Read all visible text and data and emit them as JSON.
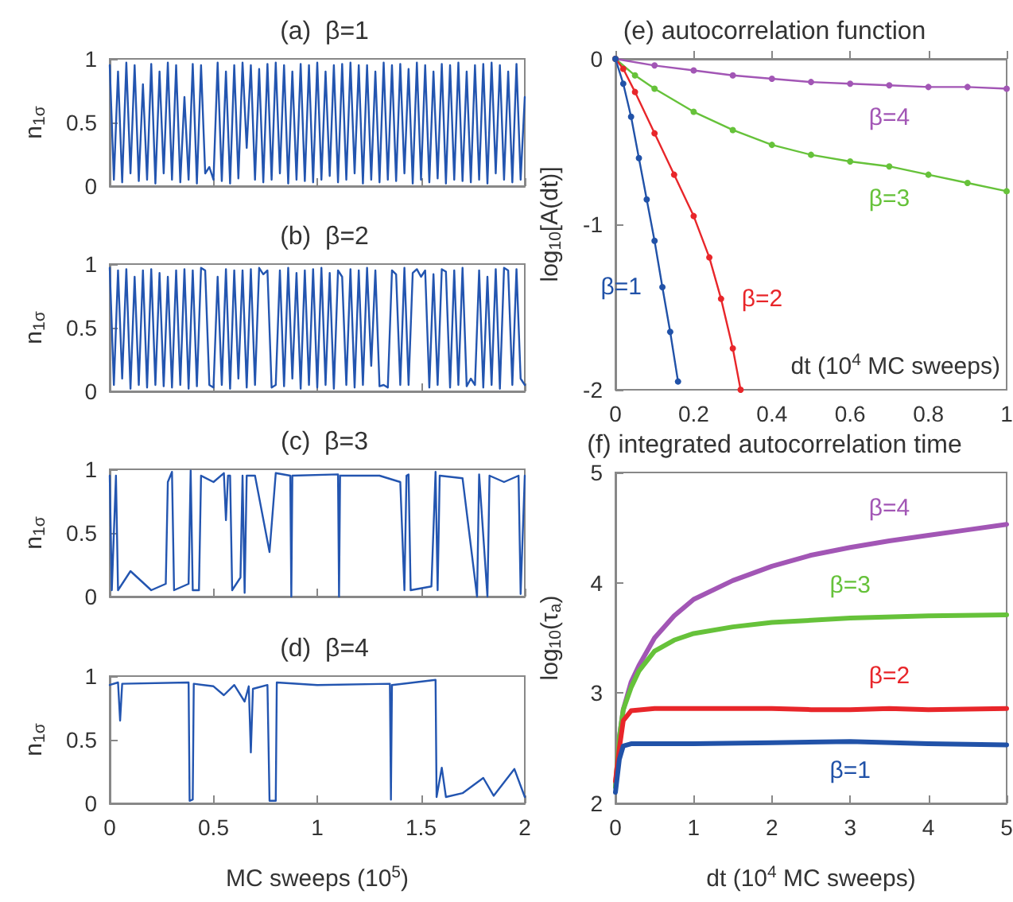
{
  "chart_data": [
    {
      "type": "line",
      "title": "(a)  β=1",
      "ylabel": "n$_{1σ}$",
      "xlim": [
        0,
        2
      ],
      "xticks": [
        0,
        0.5,
        1,
        1.5,
        2
      ],
      "ylim": [
        0,
        1
      ],
      "yticks": [
        0,
        0.5,
        1
      ],
      "tick_labels": "y",
      "marker": "none",
      "series": [
        {
          "color": "#2355b0",
          "x": [
            0,
            0.02,
            0.04,
            0.06,
            0.08,
            0.1,
            0.12,
            0.14,
            0.16,
            0.18,
            0.2,
            0.22,
            0.24,
            0.26,
            0.28,
            0.3,
            0.32,
            0.34,
            0.36,
            0.38,
            0.4,
            0.42,
            0.44,
            0.46,
            0.48,
            0.5,
            0.52,
            0.54,
            0.56,
            0.58,
            0.6,
            0.62,
            0.64,
            0.66,
            0.68,
            0.7,
            0.72,
            0.74,
            0.76,
            0.78,
            0.8,
            0.82,
            0.84,
            0.86,
            0.88,
            0.9,
            0.92,
            0.94,
            0.96,
            0.98,
            1,
            1.02,
            1.04,
            1.06,
            1.08,
            1.1,
            1.12,
            1.14,
            1.16,
            1.18,
            1.2,
            1.22,
            1.24,
            1.26,
            1.28,
            1.3,
            1.32,
            1.34,
            1.36,
            1.38,
            1.4,
            1.42,
            1.44,
            1.46,
            1.48,
            1.5,
            1.52,
            1.54,
            1.56,
            1.58,
            1.6,
            1.62,
            1.64,
            1.66,
            1.68,
            1.7,
            1.72,
            1.74,
            1.76,
            1.78,
            1.8,
            1.82,
            1.84,
            1.86,
            1.88,
            1.9,
            1.92,
            1.94,
            1.96,
            1.98,
            2
          ],
          "values": [
            0.95,
            0.05,
            0.9,
            0.03,
            0.97,
            0.1,
            0.95,
            0.04,
            0.8,
            0.05,
            0.96,
            0.02,
            0.9,
            0.1,
            0.97,
            0.05,
            0.95,
            0.03,
            0.7,
            0.05,
            0.96,
            0.02,
            0.95,
            0.1,
            0.15,
            0.05,
            0.97,
            0.04,
            0.9,
            0.02,
            0.95,
            0.06,
            0.97,
            0.3,
            0.95,
            0.05,
            0.92,
            0.03,
            0.96,
            0.05,
            0.97,
            0.1,
            0.95,
            0.02,
            0.9,
            0.05,
            0.96,
            0.04,
            0.95,
            0.03,
            0.97,
            0.05,
            0.9,
            0.08,
            0.95,
            0.03,
            0.96,
            0.05,
            0.97,
            0.1,
            0.95,
            0.02,
            0.95,
            0.05,
            0.9,
            0.03,
            0.97,
            0.05,
            0.95,
            0.04,
            0.96,
            0.1,
            0.92,
            0.02,
            0.97,
            0.05,
            0.95,
            0.03,
            0.9,
            0.06,
            0.96,
            0.02,
            0.95,
            0.05,
            0.97,
            0.04,
            0.9,
            0.03,
            0.95,
            0.05,
            0.96,
            0.02,
            0.97,
            0.1,
            0.95,
            0.05,
            0.9,
            0.03,
            0.96,
            0.05,
            0.7
          ]
        }
      ]
    },
    {
      "type": "line",
      "title": "(b)  β=2",
      "ylabel": "n$_{1σ}$",
      "xlim": [
        0,
        2
      ],
      "xticks": [
        0,
        0.5,
        1,
        1.5,
        2
      ],
      "ylim": [
        0,
        1
      ],
      "yticks": [
        0,
        0.5,
        1
      ],
      "tick_labels": "y",
      "marker": "none",
      "series": [
        {
          "color": "#2355b0",
          "x": [
            0,
            0.02,
            0.04,
            0.06,
            0.08,
            0.1,
            0.12,
            0.14,
            0.16,
            0.18,
            0.2,
            0.22,
            0.24,
            0.26,
            0.28,
            0.3,
            0.32,
            0.34,
            0.36,
            0.38,
            0.4,
            0.42,
            0.44,
            0.46,
            0.48,
            0.5,
            0.52,
            0.54,
            0.56,
            0.58,
            0.6,
            0.62,
            0.64,
            0.66,
            0.68,
            0.7,
            0.72,
            0.74,
            0.76,
            0.78,
            0.8,
            0.82,
            0.84,
            0.86,
            0.88,
            0.9,
            0.92,
            0.94,
            0.96,
            0.98,
            1,
            1.02,
            1.04,
            1.06,
            1.08,
            1.1,
            1.12,
            1.14,
            1.16,
            1.18,
            1.2,
            1.22,
            1.24,
            1.26,
            1.28,
            1.3,
            1.32,
            1.34,
            1.36,
            1.38,
            1.4,
            1.42,
            1.44,
            1.46,
            1.48,
            1.5,
            1.52,
            1.54,
            1.56,
            1.58,
            1.6,
            1.62,
            1.64,
            1.66,
            1.68,
            1.7,
            1.72,
            1.74,
            1.76,
            1.78,
            1.8,
            1.82,
            1.84,
            1.86,
            1.88,
            1.9,
            1.92,
            1.94,
            1.96,
            1.98,
            2
          ],
          "values": [
            0.97,
            0.05,
            0.95,
            0.1,
            0.96,
            0.02,
            0.9,
            0.05,
            0.95,
            0.03,
            0.96,
            0.05,
            0.93,
            0.04,
            0.9,
            0.03,
            0.95,
            0.05,
            0.96,
            0.02,
            0.95,
            0.04,
            0.97,
            0.95,
            0.05,
            0.03,
            0.9,
            0.05,
            0.96,
            0.02,
            0.95,
            0.1,
            0.95,
            0.03,
            0.96,
            0.05,
            0.97,
            0.92,
            0.95,
            0.03,
            0.05,
            0.95,
            0.04,
            0.97,
            0.1,
            0.93,
            0.02,
            0.95,
            0.05,
            0.96,
            0.03,
            0.97,
            0.05,
            0.93,
            0.02,
            0.95,
            0.9,
            0.05,
            0.96,
            0.03,
            0.95,
            0.05,
            0.97,
            0.2,
            0.95,
            0.04,
            0.05,
            0.03,
            0.95,
            0.92,
            0.05,
            0.97,
            0.05,
            0.93,
            0.96,
            0.9,
            0.95,
            0.03,
            0.92,
            0.05,
            0.96,
            0.94,
            0.03,
            0.95,
            0.05,
            0.97,
            0.04,
            0.1,
            0.05,
            0.95,
            0.03,
            0.9,
            0.05,
            0.96,
            0.02,
            0.97,
            0.95,
            0.05,
            0.96,
            0.1,
            0.05
          ]
        }
      ]
    },
    {
      "type": "line",
      "title": "(c)  β=3",
      "ylabel": "n$_{1σ}$",
      "xlim": [
        0,
        2
      ],
      "xticks": [
        0,
        0.5,
        1,
        1.5,
        2
      ],
      "ylim": [
        0,
        1
      ],
      "yticks": [
        0,
        0.5,
        1
      ],
      "tick_labels": "y",
      "marker": "none",
      "series": [
        {
          "color": "#2355b0",
          "x": [
            0,
            0.01,
            0.03,
            0.04,
            0.1,
            0.2,
            0.27,
            0.28,
            0.3,
            0.31,
            0.38,
            0.39,
            0.4,
            0.43,
            0.44,
            0.5,
            0.55,
            0.56,
            0.57,
            0.58,
            0.59,
            0.63,
            0.64,
            0.65,
            0.66,
            0.7,
            0.77,
            0.8,
            0.87,
            0.875,
            0.88,
            1.1,
            1.105,
            1.11,
            1.3,
            1.4,
            1.42,
            1.43,
            1.44,
            1.45,
            1.55,
            1.57,
            1.58,
            1.59,
            1.7,
            1.77,
            1.78,
            1.82,
            1.83,
            1.9,
            1.97,
            1.98,
            2
          ],
          "values": [
            0.95,
            0.05,
            0.95,
            0.05,
            0.2,
            0.05,
            0.1,
            0.9,
            0.98,
            0.05,
            0.1,
            0.99,
            0.05,
            0.05,
            0.95,
            0.9,
            0.97,
            0.6,
            0.95,
            0.95,
            0.05,
            0.15,
            0.95,
            0.03,
            0.95,
            0.95,
            0.35,
            0.97,
            0.95,
            0,
            0.95,
            0.96,
            0,
            0.95,
            0.95,
            0.9,
            0.05,
            0.95,
            0.96,
            0.05,
            0.08,
            0.98,
            0.05,
            0.95,
            0.93,
            0,
            0.96,
            0,
            0.95,
            0.9,
            0.95,
            0.02,
            0.95
          ]
        }
      ]
    },
    {
      "type": "line",
      "title": "(d)  β=4",
      "ylabel": "n$_{1σ}$",
      "xlabel": "MC sweeps (10$^{5}$)",
      "xlim": [
        0,
        2
      ],
      "xticks": [
        0,
        0.5,
        1,
        1.5,
        2
      ],
      "ylim": [
        0,
        1
      ],
      "yticks": [
        0,
        0.5,
        1
      ],
      "marker": "none",
      "series": [
        {
          "color": "#2355b0",
          "x": [
            0,
            0.04,
            0.05,
            0.06,
            0.38,
            0.385,
            0.4,
            0.405,
            0.5,
            0.55,
            0.6,
            0.65,
            0.67,
            0.68,
            0.69,
            0.76,
            0.77,
            0.8,
            0.805,
            1,
            1.35,
            1.355,
            1.36,
            1.57,
            1.575,
            1.6,
            1.62,
            1.7,
            1.8,
            1.85,
            1.95,
            2
          ],
          "values": [
            0.93,
            0.95,
            0.65,
            0.94,
            0.95,
            0.02,
            0.03,
            0.94,
            0.92,
            0.85,
            0.93,
            0.8,
            0.92,
            0.4,
            0.9,
            0.93,
            0.02,
            0.02,
            0.95,
            0.93,
            0.94,
            0.03,
            0.93,
            0.97,
            0.05,
            0.28,
            0.05,
            0.08,
            0.2,
            0.06,
            0.27,
            0.05
          ]
        }
      ]
    },
    {
      "type": "line",
      "title": "(e) autocorrelation function",
      "ylabel": "log$_{10}$[A(dt)]",
      "xlabel": "dt (10$^{4}$ MC sweeps)",
      "xlim": [
        0,
        1
      ],
      "xticks": [
        0,
        0.2,
        0.4,
        0.6,
        0.8,
        1
      ],
      "ylim": [
        -2,
        0
      ],
      "yticks": [
        -2,
        -1,
        0
      ],
      "marker": "circle",
      "series": [
        {
          "name": "β=4",
          "color": "#a256b5",
          "x": [
            0,
            0.1,
            0.2,
            0.3,
            0.4,
            0.5,
            0.6,
            0.7,
            0.8,
            0.9,
            1
          ],
          "values": [
            0,
            -0.04,
            -0.07,
            -0.1,
            -0.12,
            -0.14,
            -0.15,
            -0.16,
            -0.17,
            -0.17,
            -0.18
          ]
        },
        {
          "name": "β=3",
          "color": "#66c23a",
          "x": [
            0,
            0.05,
            0.1,
            0.2,
            0.3,
            0.4,
            0.5,
            0.6,
            0.7,
            0.8,
            0.9,
            1
          ],
          "values": [
            0,
            -0.1,
            -0.18,
            -0.32,
            -0.43,
            -0.52,
            -0.58,
            -0.62,
            -0.65,
            -0.7,
            -0.75,
            -0.8
          ]
        },
        {
          "name": "β=2",
          "color": "#e8262a",
          "x": [
            0,
            0.02,
            0.05,
            0.1,
            0.15,
            0.2,
            0.24,
            0.27,
            0.3,
            0.32
          ],
          "values": [
            0,
            -0.06,
            -0.2,
            -0.45,
            -0.7,
            -0.95,
            -1.2,
            -1.45,
            -1.75,
            -2
          ]
        },
        {
          "name": "β=1",
          "color": "#2152a8",
          "x": [
            0,
            0.02,
            0.04,
            0.06,
            0.08,
            0.1,
            0.12,
            0.14,
            0.16
          ],
          "values": [
            0,
            -0.15,
            -0.35,
            -0.6,
            -0.85,
            -1.1,
            -1.38,
            -1.65,
            -1.95
          ]
        }
      ]
    },
    {
      "type": "line",
      "title": "(f) integrated autocorrelation time",
      "ylabel": "log$_{10}$(τ$_{a}$)",
      "xlabel": "dt (10$^{4}$ MC sweeps)",
      "xlim": [
        0,
        5
      ],
      "xticks": [
        0,
        1,
        2,
        3,
        4,
        5
      ],
      "ylim": [
        2,
        5
      ],
      "yticks": [
        2,
        3,
        4,
        5
      ],
      "marker": "none",
      "series": [
        {
          "name": "β=4",
          "color": "#a256b5",
          "x": [
            0,
            0.05,
            0.1,
            0.2,
            0.3,
            0.5,
            0.75,
            1,
            1.5,
            2,
            2.5,
            3,
            3.5,
            4,
            4.5,
            5
          ],
          "values": [
            2.15,
            2.6,
            2.85,
            3.1,
            3.25,
            3.5,
            3.7,
            3.85,
            4.02,
            4.15,
            4.25,
            4.32,
            4.38,
            4.43,
            4.48,
            4.53
          ]
        },
        {
          "name": "β=3",
          "color": "#66c23a",
          "x": [
            0,
            0.05,
            0.1,
            0.2,
            0.3,
            0.5,
            0.75,
            1,
            1.5,
            2,
            3,
            4,
            5
          ],
          "values": [
            2.15,
            2.6,
            2.85,
            3.05,
            3.2,
            3.38,
            3.48,
            3.54,
            3.6,
            3.64,
            3.68,
            3.7,
            3.71
          ]
        },
        {
          "name": "β=2",
          "color": "#e8262a",
          "x": [
            0,
            0.05,
            0.1,
            0.2,
            0.5,
            1,
            2,
            2.5,
            3,
            3.5,
            4,
            5
          ],
          "values": [
            2.2,
            2.5,
            2.75,
            2.84,
            2.86,
            2.86,
            2.86,
            2.85,
            2.85,
            2.86,
            2.85,
            2.86
          ]
        },
        {
          "name": "β=1",
          "color": "#2152a8",
          "x": [
            0,
            0.05,
            0.1,
            0.2,
            1,
            2,
            3,
            4,
            5
          ],
          "values": [
            2.1,
            2.4,
            2.52,
            2.54,
            2.54,
            2.55,
            2.56,
            2.54,
            2.53
          ]
        }
      ]
    }
  ]
}
